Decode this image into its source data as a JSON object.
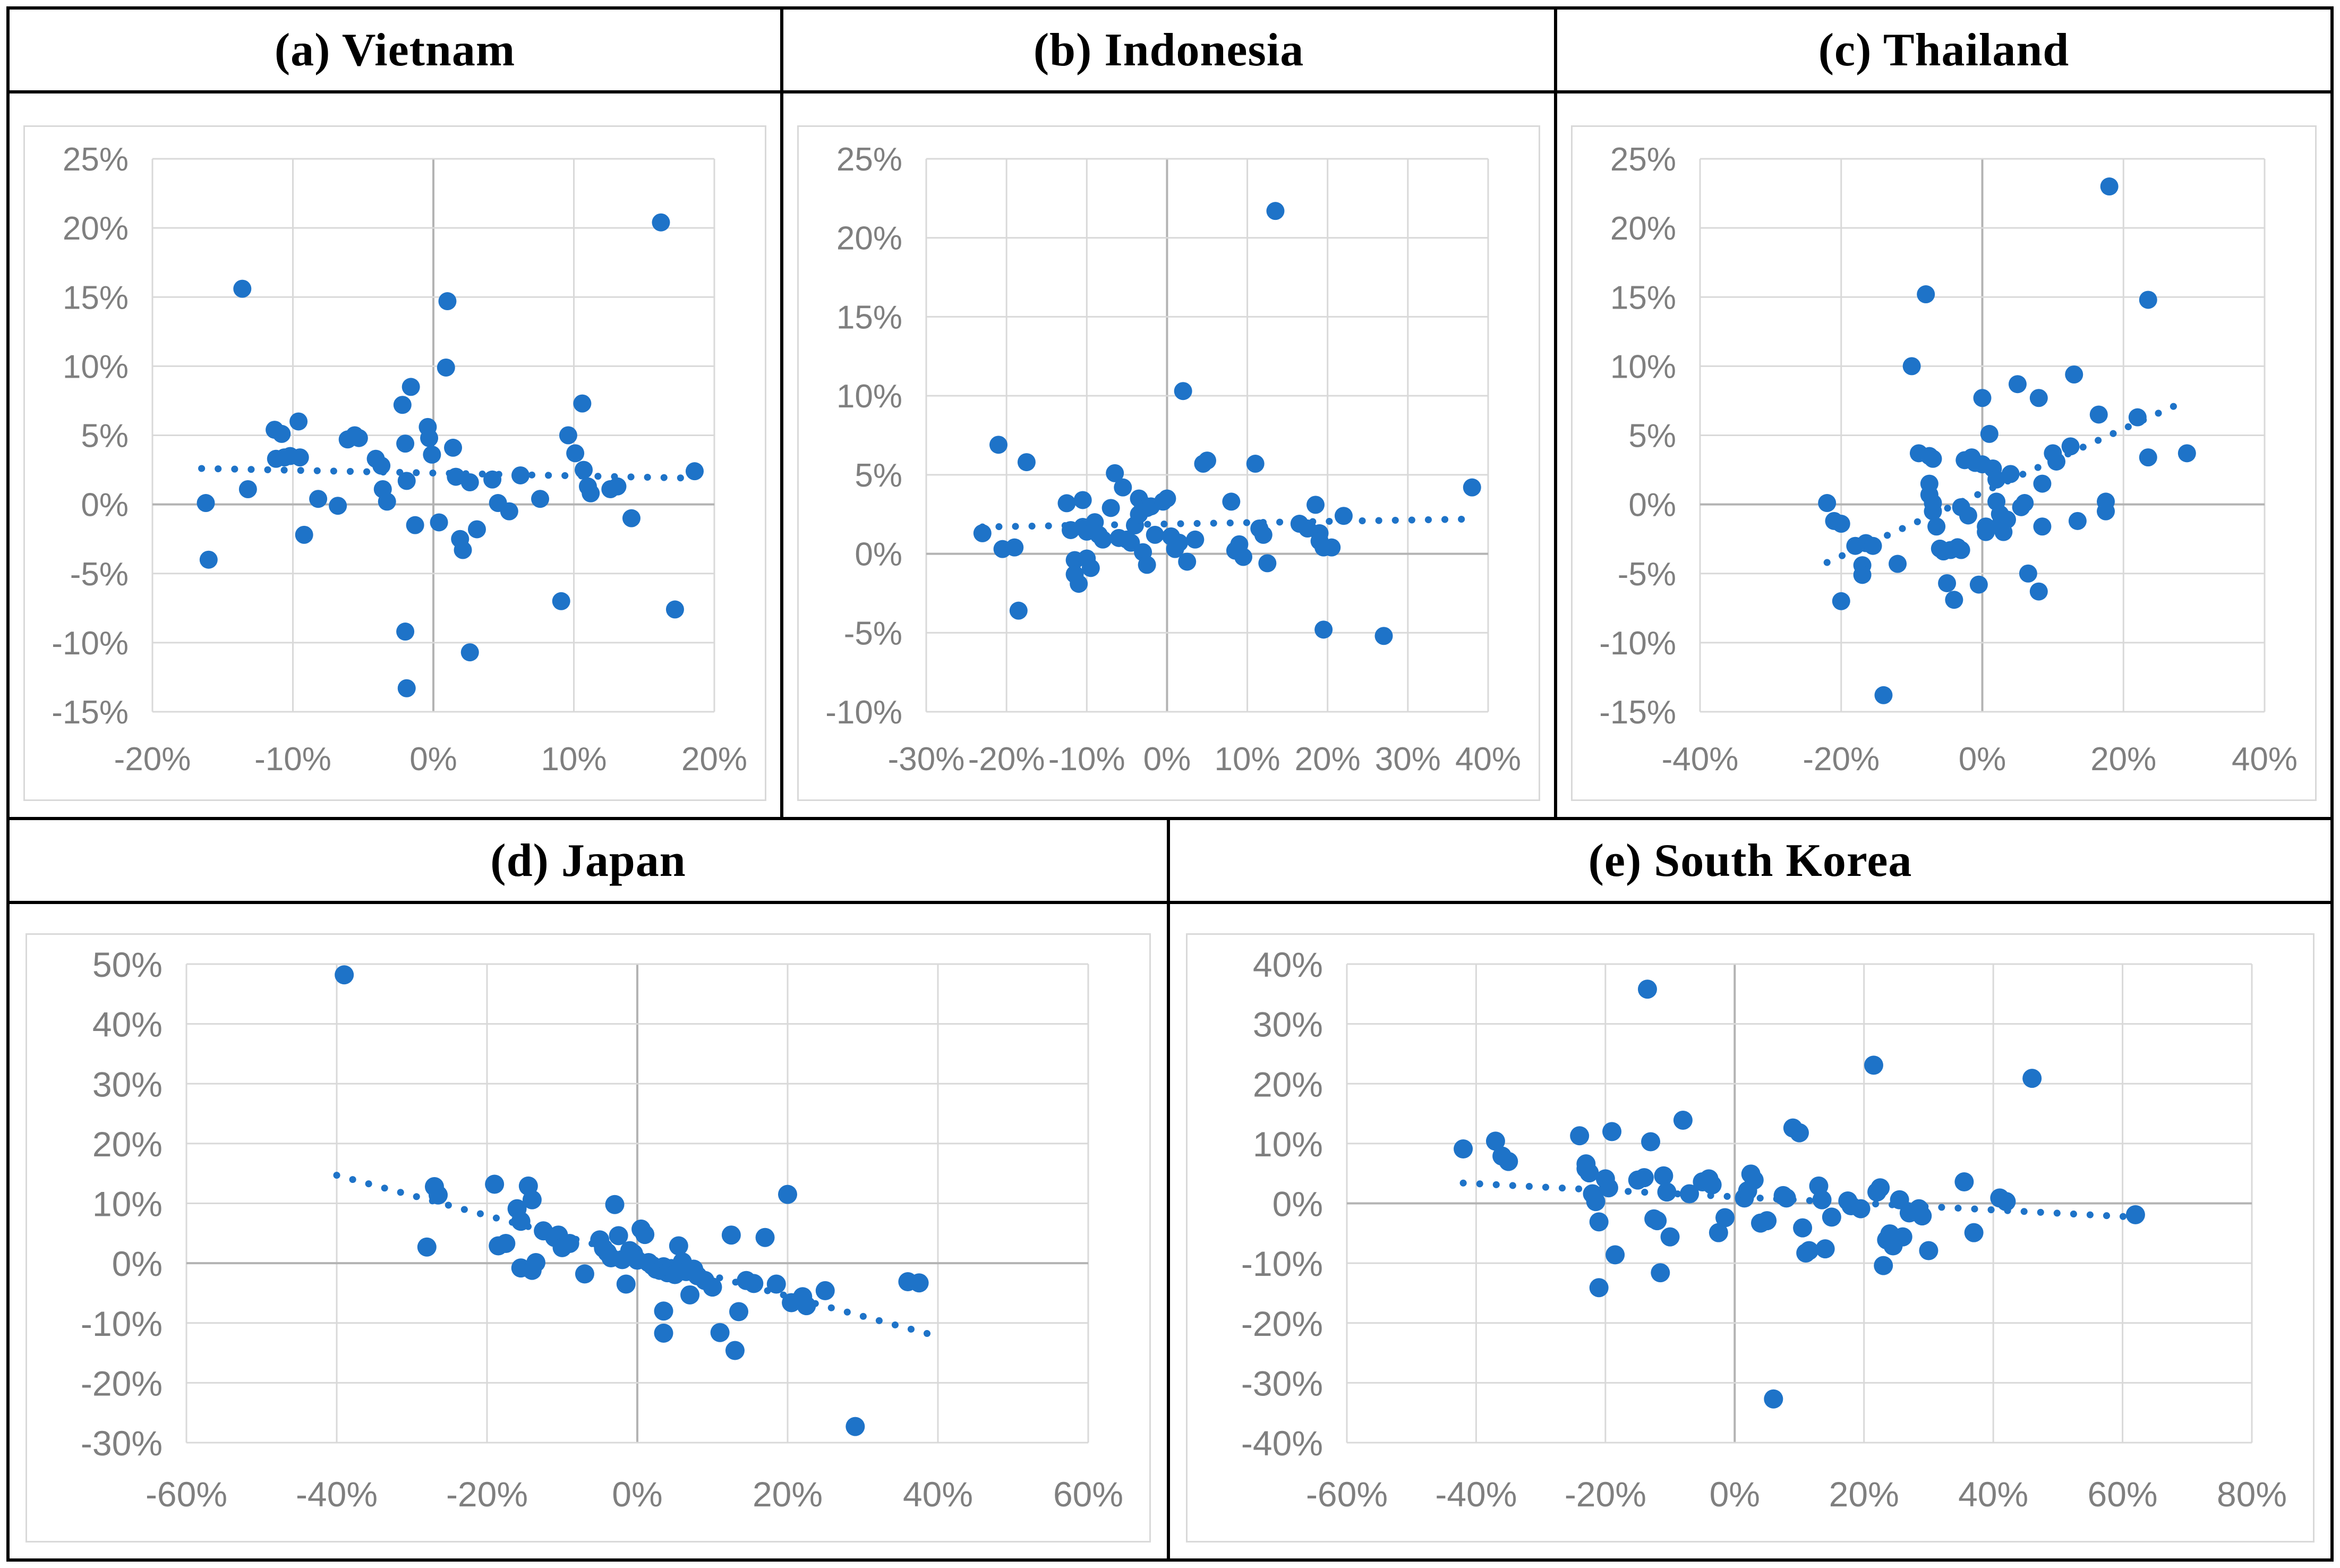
{
  "figure_name": "five-country-scatter-figure",
  "colors": {
    "dot": "#1E73C8",
    "grid": "#D9D9D9",
    "zero_axis": "#B3B3B3",
    "tick_label": "#7F7F7F",
    "frame_border": "#D9D9D9",
    "cell_border": "#000000"
  },
  "chart_data": [
    {
      "type": "scatter",
      "title": "(a) Vietnam",
      "xlabel": "",
      "ylabel": "",
      "xlim": [
        -20,
        20
      ],
      "xtick_step": 10,
      "ylim": [
        -15,
        25
      ],
      "ytick_step": 5,
      "grid": true,
      "legend": "none",
      "trend": {
        "x": [
          -16.5,
          18.5
        ],
        "y": [
          2.6,
          1.9
        ]
      },
      "points": [
        [
          -16.2,
          0.1
        ],
        [
          -16.0,
          -4.0
        ],
        [
          -13.6,
          15.6
        ],
        [
          -13.2,
          1.1
        ],
        [
          -11.3,
          5.4
        ],
        [
          -11.2,
          3.3
        ],
        [
          -10.8,
          5.1
        ],
        [
          -10.6,
          3.4
        ],
        [
          -10.2,
          3.5
        ],
        [
          -9.6,
          6.0
        ],
        [
          -9.5,
          3.4
        ],
        [
          -9.2,
          -2.2
        ],
        [
          -8.2,
          0.4
        ],
        [
          -6.8,
          -0.1
        ],
        [
          -6.1,
          4.7
        ],
        [
          -5.6,
          5.0
        ],
        [
          -5.3,
          4.8
        ],
        [
          -4.1,
          3.3
        ],
        [
          -3.7,
          2.8
        ],
        [
          -3.6,
          1.1
        ],
        [
          -3.3,
          0.2
        ],
        [
          -2.2,
          7.2
        ],
        [
          -2.0,
          4.4
        ],
        [
          -1.6,
          8.5
        ],
        [
          -1.9,
          1.7
        ],
        [
          -1.3,
          -1.5
        ],
        [
          -0.4,
          5.6
        ],
        [
          -0.3,
          4.8
        ],
        [
          -0.1,
          3.6
        ],
        [
          0.4,
          -1.3
        ],
        [
          0.9,
          9.9
        ],
        [
          1.0,
          14.7
        ],
        [
          1.4,
          4.1
        ],
        [
          1.6,
          2.0
        ],
        [
          1.9,
          -2.5
        ],
        [
          2.1,
          -3.3
        ],
        [
          2.6,
          1.6
        ],
        [
          3.1,
          -1.8
        ],
        [
          4.2,
          1.8
        ],
        [
          4.6,
          0.1
        ],
        [
          5.4,
          -0.5
        ],
        [
          6.2,
          2.1
        ],
        [
          7.6,
          0.4
        ],
        [
          9.1,
          -7.0
        ],
        [
          9.6,
          5.0
        ],
        [
          10.1,
          3.7
        ],
        [
          10.6,
          7.3
        ],
        [
          10.7,
          2.5
        ],
        [
          11.0,
          1.3
        ],
        [
          11.2,
          0.8
        ],
        [
          12.6,
          1.1
        ],
        [
          13.1,
          1.3
        ],
        [
          14.1,
          -1.0
        ],
        [
          16.2,
          20.4
        ],
        [
          17.2,
          -7.6
        ],
        [
          18.6,
          2.4
        ],
        [
          -2.0,
          -9.2
        ],
        [
          2.6,
          -10.7
        ],
        [
          -1.9,
          -13.3
        ]
      ]
    },
    {
      "type": "scatter",
      "title": "(b) Indonesia",
      "xlabel": "",
      "ylabel": "",
      "xlim": [
        -30,
        40
      ],
      "xtick_step": 10,
      "ylim": [
        -10,
        25
      ],
      "ytick_step": 5,
      "grid": true,
      "legend": "none",
      "trend": {
        "x": [
          -23,
          38
        ],
        "y": [
          1.7,
          2.2
        ]
      },
      "points": [
        [
          -23,
          1.3
        ],
        [
          -21,
          6.9
        ],
        [
          -20.5,
          0.3
        ],
        [
          -19,
          0.4
        ],
        [
          -18.5,
          -3.6
        ],
        [
          -17.5,
          5.8
        ],
        [
          -12.5,
          3.2
        ],
        [
          -12,
          1.5
        ],
        [
          -11.5,
          -0.4
        ],
        [
          -11.5,
          -1.3
        ],
        [
          -11,
          -1.9
        ],
        [
          -10.5,
          3.4
        ],
        [
          -10.5,
          1.7
        ],
        [
          -10,
          1.4
        ],
        [
          -10,
          -0.3
        ],
        [
          -9.5,
          -0.9
        ],
        [
          -9,
          2.0
        ],
        [
          -8.5,
          1.2
        ],
        [
          -8,
          0.9
        ],
        [
          -7,
          2.9
        ],
        [
          -6.5,
          5.1
        ],
        [
          -6,
          1.0
        ],
        [
          -5.5,
          4.2
        ],
        [
          -5,
          0.9
        ],
        [
          -4.5,
          0.7
        ],
        [
          -4,
          1.8
        ],
        [
          -3.5,
          3.5
        ],
        [
          -3.5,
          2.5
        ],
        [
          -3,
          3.1
        ],
        [
          -3,
          0.1
        ],
        [
          -2.5,
          2.9
        ],
        [
          -2.5,
          -0.7
        ],
        [
          -2,
          3.0
        ],
        [
          -1.5,
          1.2
        ],
        [
          -0.5,
          3.3
        ],
        [
          0,
          3.5
        ],
        [
          0.5,
          1.1
        ],
        [
          1,
          0.3
        ],
        [
          1.5,
          0.7
        ],
        [
          2,
          10.3
        ],
        [
          2.5,
          -0.5
        ],
        [
          3.5,
          0.9
        ],
        [
          4.5,
          5.7
        ],
        [
          5,
          5.9
        ],
        [
          8,
          3.3
        ],
        [
          8.5,
          0.2
        ],
        [
          9,
          0.6
        ],
        [
          9.5,
          -0.2
        ],
        [
          11,
          5.7
        ],
        [
          11.5,
          1.6
        ],
        [
          12,
          1.2
        ],
        [
          12.5,
          -0.6
        ],
        [
          13.5,
          21.7
        ],
        [
          16.5,
          1.9
        ],
        [
          17.5,
          1.6
        ],
        [
          18.5,
          3.1
        ],
        [
          19,
          1.3
        ],
        [
          19,
          0.8
        ],
        [
          19.5,
          0.4
        ],
        [
          19.5,
          -4.8
        ],
        [
          20.5,
          0.4
        ],
        [
          22,
          2.4
        ],
        [
          27,
          -5.2
        ],
        [
          38,
          4.2
        ]
      ]
    },
    {
      "type": "scatter",
      "title": "(c) Thailand",
      "xlabel": "",
      "ylabel": "",
      "xlim": [
        -40,
        40
      ],
      "xtick_step": 20,
      "ylim": [
        -15,
        25
      ],
      "ytick_step": 5,
      "grid": true,
      "legend": "none",
      "trend": {
        "x": [
          -22,
          28
        ],
        "y": [
          -4.2,
          7.3
        ]
      },
      "points": [
        [
          -22,
          0.1
        ],
        [
          -21,
          -1.2
        ],
        [
          -20,
          -1.4
        ],
        [
          -20,
          -7.0
        ],
        [
          -18,
          -3.0
        ],
        [
          -17,
          -4.4
        ],
        [
          -17,
          -5.1
        ],
        [
          -16.5,
          -2.8
        ],
        [
          -15.5,
          -3.0
        ],
        [
          -14,
          -13.8
        ],
        [
          -12,
          -4.3
        ],
        [
          -10,
          10.0
        ],
        [
          -9,
          3.7
        ],
        [
          -8,
          15.2
        ],
        [
          -7.5,
          3.5
        ],
        [
          -7,
          3.3
        ],
        [
          -7.5,
          1.5
        ],
        [
          -7.5,
          0.7
        ],
        [
          -7,
          0.1
        ],
        [
          -7,
          -0.5
        ],
        [
          -6.5,
          -1.6
        ],
        [
          -6,
          -3.2
        ],
        [
          -5.5,
          -3.4
        ],
        [
          -5,
          -5.7
        ],
        [
          -4.5,
          -3.3
        ],
        [
          -4,
          -6.9
        ],
        [
          -3.5,
          -3.1
        ],
        [
          -3,
          -0.2
        ],
        [
          -3,
          -3.3
        ],
        [
          -2.5,
          3.2
        ],
        [
          -2,
          -0.8
        ],
        [
          -1.5,
          3.4
        ],
        [
          -1,
          3.0
        ],
        [
          -0.5,
          -5.8
        ],
        [
          0,
          7.7
        ],
        [
          0,
          2.9
        ],
        [
          0.5,
          -1.6
        ],
        [
          0.5,
          -2.0
        ],
        [
          1,
          5.1
        ],
        [
          1.5,
          2.6
        ],
        [
          2,
          1.8
        ],
        [
          2,
          0.2
        ],
        [
          2.5,
          -0.7
        ],
        [
          2.5,
          -1.5
        ],
        [
          3,
          -2.0
        ],
        [
          3.5,
          -1.1
        ],
        [
          4,
          2.2
        ],
        [
          5,
          8.7
        ],
        [
          5.5,
          -0.2
        ],
        [
          6,
          0.1
        ],
        [
          6.5,
          -5.0
        ],
        [
          8,
          7.7
        ],
        [
          8.5,
          1.5
        ],
        [
          8.5,
          -1.6
        ],
        [
          8,
          -6.3
        ],
        [
          10,
          3.7
        ],
        [
          10.5,
          3.1
        ],
        [
          12.5,
          4.2
        ],
        [
          13,
          9.4
        ],
        [
          13.5,
          -1.2
        ],
        [
          16.5,
          6.5
        ],
        [
          18,
          23.0
        ],
        [
          17.5,
          0.2
        ],
        [
          17.5,
          -0.5
        ],
        [
          22,
          6.3
        ],
        [
          23.5,
          14.8
        ],
        [
          23.5,
          3.4
        ],
        [
          29,
          3.7
        ]
      ]
    },
    {
      "type": "scatter",
      "title": "(d) Japan",
      "xlabel": "",
      "ylabel": "",
      "xlim": [
        -60,
        60
      ],
      "xtick_step": 20,
      "ylim": [
        -30,
        50
      ],
      "ytick_step": 10,
      "grid": true,
      "legend": "none",
      "trend": {
        "x": [
          -40,
          39
        ],
        "y": [
          14.7,
          -11.9
        ]
      },
      "points": [
        [
          -39,
          48.2
        ],
        [
          -28,
          2.7
        ],
        [
          -27,
          12.8
        ],
        [
          -26.5,
          11.4
        ],
        [
          -19,
          13.2
        ],
        [
          -18.5,
          2.9
        ],
        [
          -17.5,
          3.3
        ],
        [
          -16,
          9.1
        ],
        [
          -15.5,
          7.0
        ],
        [
          -15.5,
          -0.8
        ],
        [
          -14.5,
          12.9
        ],
        [
          -14,
          10.6
        ],
        [
          -14,
          -1.2
        ],
        [
          -13.5,
          0.1
        ],
        [
          -12.5,
          5.4
        ],
        [
          -11,
          4.3
        ],
        [
          -10.5,
          4.7
        ],
        [
          -10,
          2.6
        ],
        [
          -9,
          3.3
        ],
        [
          -7,
          -1.8
        ],
        [
          -5,
          3.9
        ],
        [
          -4.5,
          2.5
        ],
        [
          -4,
          1.8
        ],
        [
          -3.5,
          0.9
        ],
        [
          -3,
          9.8
        ],
        [
          -2.5,
          4.6
        ],
        [
          -2,
          0.6
        ],
        [
          -1.5,
          -3.5
        ],
        [
          -1,
          2.1
        ],
        [
          -0.5,
          1.6
        ],
        [
          0,
          0.5
        ],
        [
          0.5,
          5.7
        ],
        [
          1,
          4.8
        ],
        [
          1.5,
          0.1
        ],
        [
          2,
          -0.4
        ],
        [
          2.5,
          -1.0
        ],
        [
          3,
          -1.2
        ],
        [
          3.5,
          -0.6
        ],
        [
          3.5,
          -8.0
        ],
        [
          3.5,
          -11.7
        ],
        [
          4,
          -1.6
        ],
        [
          4.5,
          -0.9
        ],
        [
          5,
          -1.9
        ],
        [
          5.5,
          2.9
        ],
        [
          6,
          0.2
        ],
        [
          6.5,
          -1.4
        ],
        [
          7,
          -5.3
        ],
        [
          7.5,
          -1.0
        ],
        [
          8,
          -2.1
        ],
        [
          9,
          -2.9
        ],
        [
          10,
          -4.0
        ],
        [
          11,
          -11.6
        ],
        [
          12.5,
          4.7
        ],
        [
          13,
          -14.6
        ],
        [
          13.5,
          -8.1
        ],
        [
          14.5,
          -2.9
        ],
        [
          15.5,
          -3.4
        ],
        [
          17,
          4.3
        ],
        [
          18.5,
          -3.5
        ],
        [
          20,
          11.5
        ],
        [
          20.5,
          -6.6
        ],
        [
          22,
          -5.6
        ],
        [
          22.5,
          -7.1
        ],
        [
          25,
          -4.6
        ],
        [
          29,
          -27.3
        ],
        [
          36,
          -3.1
        ],
        [
          37.5,
          -3.3
        ]
      ]
    },
    {
      "type": "scatter",
      "title": "(e) South Korea",
      "xlabel": "",
      "ylabel": "",
      "xlim": [
        -60,
        80
      ],
      "xtick_step": 20,
      "ylim": [
        -40,
        40
      ],
      "ytick_step": 10,
      "grid": true,
      "legend": "none",
      "trend": {
        "x": [
          -42,
          62
        ],
        "y": [
          3.4,
          -2.3
        ]
      },
      "points": [
        [
          -42,
          9.1
        ],
        [
          -37,
          10.4
        ],
        [
          -36,
          7.9
        ],
        [
          -35,
          7.0
        ],
        [
          -24,
          11.3
        ],
        [
          -23,
          6.6
        ],
        [
          -23,
          5.8
        ],
        [
          -22.5,
          5.1
        ],
        [
          -22,
          1.6
        ],
        [
          -21.5,
          0.3
        ],
        [
          -21,
          -3.1
        ],
        [
          -21,
          -14.1
        ],
        [
          -20,
          4.1
        ],
        [
          -19.5,
          2.6
        ],
        [
          -19,
          12.0
        ],
        [
          -18.5,
          -8.6
        ],
        [
          -15,
          3.9
        ],
        [
          -14,
          4.3
        ],
        [
          -13.5,
          35.8
        ],
        [
          -13,
          10.3
        ],
        [
          -12.5,
          -2.6
        ],
        [
          -12,
          -2.9
        ],
        [
          -11.5,
          -11.6
        ],
        [
          -11,
          4.6
        ],
        [
          -10.5,
          1.9
        ],
        [
          -10,
          -5.6
        ],
        [
          -8,
          13.9
        ],
        [
          -7,
          1.6
        ],
        [
          -5,
          3.6
        ],
        [
          -4,
          4.1
        ],
        [
          -3.5,
          3.1
        ],
        [
          -2.5,
          -4.9
        ],
        [
          -1.5,
          -2.4
        ],
        [
          1.5,
          0.9
        ],
        [
          2,
          2.1
        ],
        [
          2.5,
          4.9
        ],
        [
          3,
          3.9
        ],
        [
          4,
          -3.3
        ],
        [
          5,
          -2.9
        ],
        [
          6,
          -32.7
        ],
        [
          7.5,
          1.3
        ],
        [
          8,
          0.9
        ],
        [
          9,
          12.6
        ],
        [
          10,
          11.8
        ],
        [
          10.5,
          -4.1
        ],
        [
          11,
          -8.3
        ],
        [
          11.5,
          -7.9
        ],
        [
          13,
          2.9
        ],
        [
          13.5,
          0.6
        ],
        [
          14,
          -7.6
        ],
        [
          15,
          -2.3
        ],
        [
          17.5,
          0.4
        ],
        [
          18,
          -0.4
        ],
        [
          19.5,
          -0.9
        ],
        [
          21.5,
          23.1
        ],
        [
          22,
          1.9
        ],
        [
          22.5,
          2.6
        ],
        [
          23,
          -10.4
        ],
        [
          23.5,
          -6.1
        ],
        [
          24,
          -5.1
        ],
        [
          24.5,
          -7.1
        ],
        [
          25.5,
          0.6
        ],
        [
          26,
          -5.6
        ],
        [
          27,
          -1.6
        ],
        [
          28.5,
          -0.9
        ],
        [
          29,
          -2.1
        ],
        [
          30,
          -7.9
        ],
        [
          35.5,
          3.6
        ],
        [
          37,
          -4.9
        ],
        [
          41,
          0.9
        ],
        [
          42,
          0.3
        ],
        [
          46,
          20.9
        ],
        [
          62,
          -1.9
        ]
      ]
    }
  ]
}
